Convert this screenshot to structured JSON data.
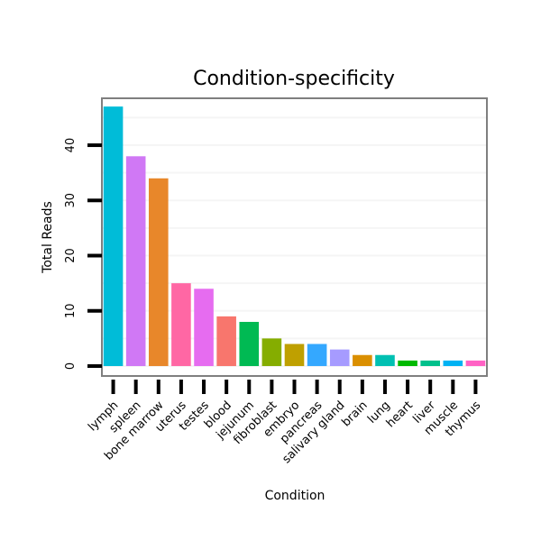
{
  "chart_data": {
    "type": "bar",
    "title": "Condition-specificity",
    "xlabel": "Condition",
    "ylabel": "Total Reads",
    "ylim": [
      -1.8,
      48.5
    ],
    "yticks": [
      0,
      10,
      20,
      30,
      40
    ],
    "grid": true,
    "categories": [
      "lymph",
      "spleen",
      "bone marrow",
      "uterus",
      "testes",
      "blood",
      "jejunum",
      "fibroblast",
      "embryo",
      "pancreas",
      "salivary gland",
      "brain",
      "lung",
      "heart",
      "liver",
      "muscle",
      "thymus"
    ],
    "values": [
      47,
      38,
      34,
      15,
      14,
      9,
      8,
      5,
      4,
      4,
      3,
      2,
      2,
      1,
      1,
      1,
      1
    ],
    "colors": [
      "#00BCD8",
      "#D078F5",
      "#E8872A",
      "#FF67A4",
      "#E66CF0",
      "#F8766D",
      "#00BA53",
      "#85AD00",
      "#BFA000",
      "#34A8FF",
      "#A69BFF",
      "#DA8F00",
      "#00C0B2",
      "#00B900",
      "#00C08B",
      "#00B2F3",
      "#FF61C4"
    ],
    "grid_color": "#F5F5F5",
    "frame_color": "#7F7F7F"
  }
}
